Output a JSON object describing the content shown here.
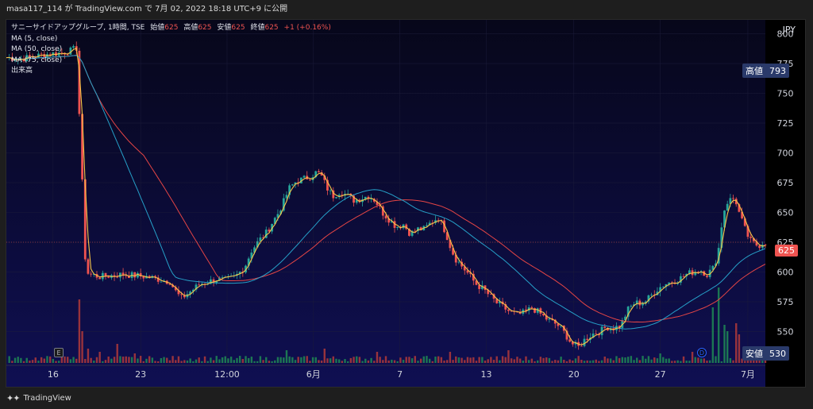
{
  "header": {
    "publish_line": "masa117_114 が TradingView.com で 7月 02, 2022 18:18 UTC+9 に公開"
  },
  "legend": {
    "symbol_line": "サニーサイドアップグループ, 1時間, TSE",
    "ohlc": [
      {
        "label": "始値",
        "value": "625"
      },
      {
        "label": "高値",
        "value": "625"
      },
      {
        "label": "安値",
        "value": "625"
      },
      {
        "label": "終値",
        "value": "625"
      }
    ],
    "change": "+1 (+0.16%)",
    "indicators": [
      "MA (5, close)",
      "MA (50, close)",
      "MA (75, close)",
      "出来高"
    ]
  },
  "axis": {
    "currency": "JPY",
    "y_ticks": [
      550,
      575,
      600,
      625,
      650,
      675,
      700,
      725,
      750,
      775,
      800
    ],
    "x_labels": [
      {
        "label": "16",
        "x": 40
      },
      {
        "label": "23",
        "x": 115
      },
      {
        "label": "12:00",
        "x": 189
      },
      {
        "label": "6月",
        "x": 263
      },
      {
        "label": "7",
        "x": 337
      },
      {
        "label": "13",
        "x": 411
      },
      {
        "label": "20",
        "x": 486
      },
      {
        "label": "27",
        "x": 560
      },
      {
        "label": "7月",
        "x": 635
      }
    ]
  },
  "badges": {
    "high": {
      "label": "高値",
      "value": "793"
    },
    "low": {
      "label": "安値",
      "value": "530"
    },
    "last": {
      "value": "625"
    }
  },
  "markers": {
    "earnings": "E",
    "dividend": "D"
  },
  "footer": {
    "brand": "TradingView"
  },
  "colors": {
    "up": "#26a69a",
    "down": "#ef5350",
    "ma5": "#f7c548",
    "ma50": "#26a0c8",
    "ma75": "#e54545",
    "badge_bg": "#2a3a6a",
    "last_bg": "#ef5350"
  },
  "chart_data": {
    "type": "line",
    "x_range": [
      0,
      650
    ],
    "ylim": [
      525,
      805
    ],
    "price_keypoints": [
      [
        0,
        780
      ],
      [
        12,
        779
      ],
      [
        24,
        781
      ],
      [
        36,
        783
      ],
      [
        48,
        784
      ],
      [
        56,
        786
      ],
      [
        60,
        788
      ],
      [
        64,
        700
      ],
      [
        68,
        600
      ],
      [
        72,
        598
      ],
      [
        80,
        596
      ],
      [
        90,
        597
      ],
      [
        100,
        598
      ],
      [
        110,
        597
      ],
      [
        120,
        596
      ],
      [
        130,
        594
      ],
      [
        140,
        592
      ],
      [
        146,
        582
      ],
      [
        150,
        578
      ],
      [
        158,
        584
      ],
      [
        166,
        590
      ],
      [
        174,
        592
      ],
      [
        180,
        594
      ],
      [
        188,
        593
      ],
      [
        196,
        596
      ],
      [
        204,
        604
      ],
      [
        210,
        618
      ],
      [
        216,
        626
      ],
      [
        222,
        632
      ],
      [
        228,
        642
      ],
      [
        232,
        648
      ],
      [
        238,
        660
      ],
      [
        242,
        670
      ],
      [
        248,
        676
      ],
      [
        254,
        678
      ],
      [
        260,
        680
      ],
      [
        266,
        684
      ],
      [
        270,
        680
      ],
      [
        276,
        668
      ],
      [
        280,
        664
      ],
      [
        286,
        668
      ],
      [
        292,
        664
      ],
      [
        298,
        660
      ],
      [
        304,
        662
      ],
      [
        310,
        664
      ],
      [
        316,
        660
      ],
      [
        322,
        650
      ],
      [
        328,
        644
      ],
      [
        334,
        638
      ],
      [
        340,
        640
      ],
      [
        346,
        632
      ],
      [
        352,
        636
      ],
      [
        358,
        636
      ],
      [
        364,
        642
      ],
      [
        370,
        646
      ],
      [
        376,
        634
      ],
      [
        380,
        622
      ],
      [
        384,
        612
      ],
      [
        390,
        605
      ],
      [
        396,
        598
      ],
      [
        402,
        590
      ],
      [
        408,
        586
      ],
      [
        414,
        580
      ],
      [
        420,
        574
      ],
      [
        426,
        570
      ],
      [
        432,
        566
      ],
      [
        438,
        564
      ],
      [
        444,
        566
      ],
      [
        450,
        570
      ],
      [
        456,
        566
      ],
      [
        462,
        561
      ],
      [
        468,
        558
      ],
      [
        474,
        554
      ],
      [
        480,
        546
      ],
      [
        484,
        540
      ],
      [
        490,
        537
      ],
      [
        496,
        544
      ],
      [
        502,
        548
      ],
      [
        508,
        550
      ],
      [
        514,
        554
      ],
      [
        520,
        553
      ],
      [
        526,
        555
      ],
      [
        532,
        568
      ],
      [
        538,
        574
      ],
      [
        544,
        574
      ],
      [
        548,
        576
      ],
      [
        552,
        580
      ],
      [
        558,
        586
      ],
      [
        564,
        590
      ],
      [
        570,
        592
      ],
      [
        576,
        594
      ],
      [
        582,
        598
      ],
      [
        588,
        600
      ],
      [
        594,
        602
      ],
      [
        600,
        598
      ],
      [
        606,
        604
      ],
      [
        610,
        620
      ],
      [
        614,
        650
      ],
      [
        618,
        660
      ],
      [
        624,
        662
      ],
      [
        628,
        648
      ],
      [
        634,
        632
      ],
      [
        638,
        625
      ],
      [
        644,
        622
      ],
      [
        648,
        625
      ]
    ],
    "volume_spikes": [
      [
        62,
        80
      ],
      [
        66,
        40
      ],
      [
        70,
        18
      ],
      [
        80,
        14
      ],
      [
        96,
        24
      ],
      [
        110,
        12
      ],
      [
        240,
        16
      ],
      [
        272,
        18
      ],
      [
        318,
        14
      ],
      [
        380,
        14
      ],
      [
        430,
        16
      ],
      [
        560,
        12
      ],
      [
        588,
        14
      ],
      [
        606,
        70
      ],
      [
        610,
        95
      ],
      [
        614,
        48
      ],
      [
        618,
        40
      ],
      [
        624,
        50
      ],
      [
        628,
        36
      ],
      [
        634,
        18
      ]
    ]
  }
}
